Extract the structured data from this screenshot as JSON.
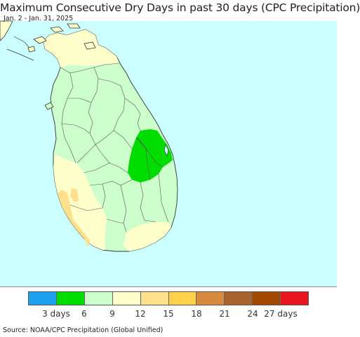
{
  "title": "Maximum Consecutive Dry Days in past 30 days (CPC Precipitation)",
  "date_range": "Jan. 2 - Jan. 31, 2025",
  "source": "Source: NOAA/CPC Precipitation (Global Unified)",
  "colors": {
    "ocean": "#ccffff",
    "land_default": "#ccffcc",
    "boundary": "#555555",
    "coast": "#333333"
  },
  "legend": {
    "colors": [
      "#1ea0f0",
      "#00dc00",
      "#ccffcc",
      "#ffffcc",
      "#ffe08c",
      "#ffd04a",
      "#d88a40",
      "#a8642e",
      "#a04800",
      "#e8141e"
    ],
    "tick_labels": [
      "3 days",
      "6",
      "9",
      "12",
      "15",
      "18",
      "21",
      "24",
      "27 days"
    ]
  },
  "map_regions": {
    "green_area_class": "3-6 days",
    "light_green_class": "6-9 days",
    "yellow_class": "9-12 days",
    "orange_class": "12-15 days"
  }
}
